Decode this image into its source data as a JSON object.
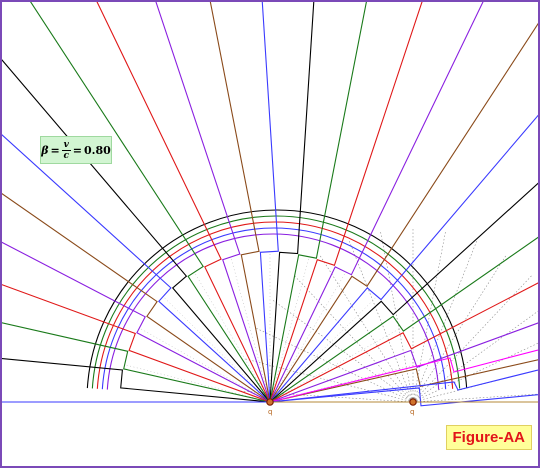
{
  "figure_label": "Figure-AA",
  "beta": {
    "symbol": "β",
    "equals": "=",
    "numerator": "v",
    "denominator": "c",
    "value": "0.80"
  },
  "charges": [
    {
      "label": "q"
    },
    {
      "label": "q"
    }
  ],
  "colors": {
    "frame": "#7b4ab8",
    "axis_blue": "#3a3aff",
    "axis_tan": "#b58a3a",
    "charge_fill": "#d0722c",
    "charge_ring": "#7a1a00",
    "beta_bg": "#d2f5d2",
    "label_bg": "#ffff99",
    "label_text": "#e2141a",
    "lines": [
      "#000000",
      "#1a7a1a",
      "#e01818",
      "#8a1fe0",
      "#8a4a1a",
      "#3a3aff",
      "#ff00ff"
    ]
  }
}
